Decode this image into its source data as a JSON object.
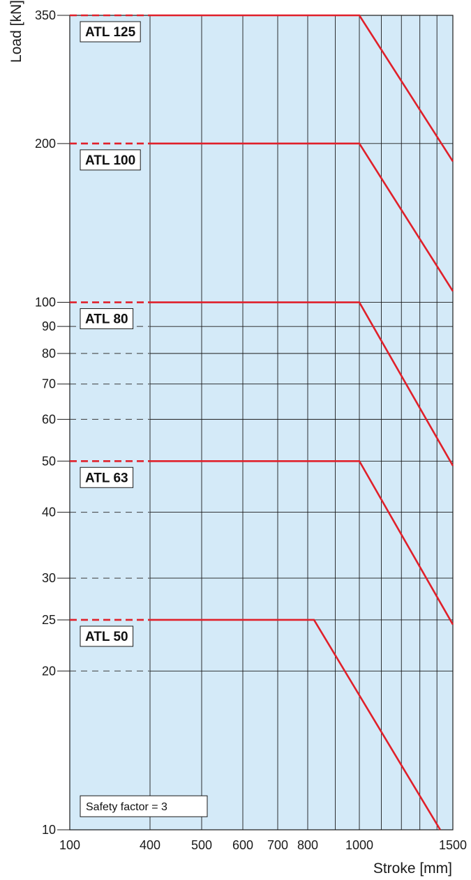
{
  "chart_data": {
    "type": "line",
    "xlabel": "Stroke [mm]",
    "ylabel": "Load [kN]",
    "x_scale": "custom",
    "y_scale": "log",
    "xlim": [
      100,
      1500
    ],
    "ylim": [
      10,
      350
    ],
    "x_ticks": [
      100,
      400,
      500,
      600,
      700,
      800,
      1000,
      1500
    ],
    "x_tick_labels": [
      "100",
      "400",
      "500",
      "600",
      "700",
      "800",
      "1000",
      "1500"
    ],
    "y_ticks": [
      10,
      20,
      25,
      30,
      40,
      50,
      60,
      70,
      80,
      90,
      100,
      200,
      350
    ],
    "y_tick_labels": [
      "10",
      "20",
      "25",
      "30",
      "40",
      "50",
      "60",
      "70",
      "80",
      "90",
      "100",
      "200",
      "350"
    ],
    "annotation": "Safety factor = 3",
    "grid": true,
    "colors": {
      "background": "#d4eaf8",
      "series": "#e0202a",
      "grid": "#1a1a1a"
    },
    "series": [
      {
        "name": "ATL 125",
        "x": [
          100,
          1000,
          1500
        ],
        "y": [
          350,
          350,
          185
        ]
      },
      {
        "name": "ATL 100",
        "x": [
          100,
          1000,
          1500
        ],
        "y": [
          200,
          200,
          105
        ]
      },
      {
        "name": "ATL 80",
        "x": [
          100,
          1000,
          1500
        ],
        "y": [
          100,
          100,
          49
        ]
      },
      {
        "name": "ATL 63",
        "x": [
          100,
          1000,
          1500
        ],
        "y": [
          50,
          50,
          24.5
        ]
      },
      {
        "name": "ATL 50",
        "x": [
          100,
          820,
          1420
        ],
        "y": [
          25,
          25,
          10
        ]
      }
    ]
  }
}
